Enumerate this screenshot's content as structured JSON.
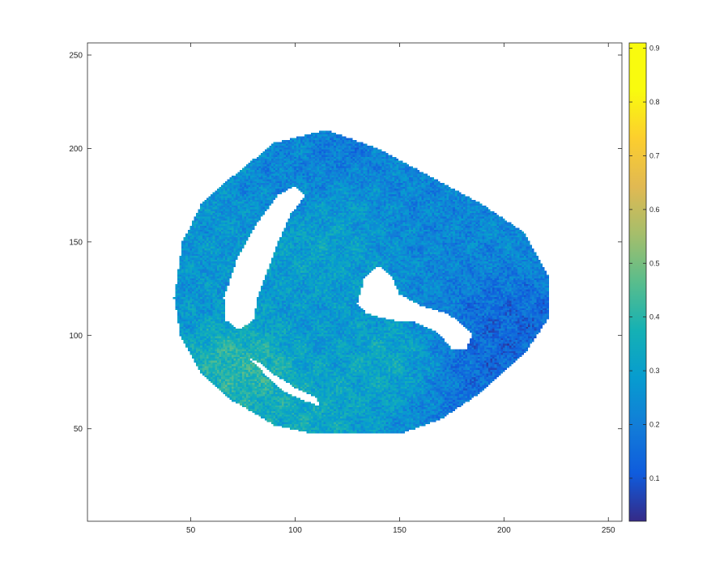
{
  "chart_data": {
    "type": "heatmap",
    "title": "",
    "xlabel": "",
    "ylabel": "",
    "xlim": [
      0.5,
      256.5
    ],
    "ylim": [
      0.5,
      256.5
    ],
    "x_ticks": [
      50,
      100,
      150,
      200,
      250
    ],
    "y_ticks": [
      50,
      100,
      150,
      200,
      250
    ],
    "x_tick_labels": [
      "50",
      "100",
      "150",
      "200",
      "250"
    ],
    "y_tick_labels": [
      "50",
      "100",
      "150",
      "200",
      "250"
    ],
    "grid": false,
    "colormap": "parula",
    "colorbar": {
      "placement": "right",
      "range": [
        0.02,
        0.91
      ],
      "ticks": [
        0.1,
        0.2,
        0.3,
        0.4,
        0.5,
        0.6,
        0.7,
        0.8,
        0.9
      ],
      "tick_labels": [
        "0.1",
        "0.2",
        "0.3",
        "0.4",
        "0.5",
        "0.6",
        "0.7",
        "0.8",
        "0.9"
      ]
    },
    "background_value": "NaN (white)",
    "region_outline": [
      [
        42,
        120
      ],
      [
        46,
        150
      ],
      [
        55,
        170
      ],
      [
        70,
        185
      ],
      [
        90,
        203
      ],
      [
        115,
        210
      ],
      [
        140,
        200
      ],
      [
        160,
        188
      ],
      [
        190,
        170
      ],
      [
        210,
        155
      ],
      [
        222,
        130
      ],
      [
        222,
        110
      ],
      [
        210,
        90
      ],
      [
        190,
        70
      ],
      [
        170,
        55
      ],
      [
        150,
        47
      ],
      [
        130,
        48
      ],
      [
        110,
        47
      ],
      [
        90,
        52
      ],
      [
        70,
        65
      ],
      [
        55,
        80
      ],
      [
        45,
        100
      ]
    ],
    "void_regions": [
      [
        [
          66,
          120
        ],
        [
          72,
          140
        ],
        [
          82,
          160
        ],
        [
          92,
          175
        ],
        [
          100,
          180
        ],
        [
          105,
          175
        ],
        [
          98,
          165
        ],
        [
          92,
          150
        ],
        [
          87,
          135
        ],
        [
          82,
          120
        ],
        [
          80,
          108
        ],
        [
          73,
          103
        ],
        [
          67,
          108
        ]
      ],
      [
        [
          130,
          117
        ],
        [
          133,
          130
        ],
        [
          140,
          137
        ],
        [
          146,
          132
        ],
        [
          150,
          122
        ],
        [
          160,
          116
        ],
        [
          172,
          112
        ],
        [
          178,
          108
        ],
        [
          185,
          101
        ],
        [
          182,
          92
        ],
        [
          175,
          93
        ],
        [
          168,
          102
        ],
        [
          158,
          107
        ],
        [
          148,
          108
        ],
        [
          140,
          110
        ],
        [
          134,
          112
        ]
      ],
      [
        [
          78,
          88
        ],
        [
          85,
          80
        ],
        [
          95,
          70
        ],
        [
          105,
          65
        ],
        [
          112,
          62
        ],
        [
          110,
          67
        ],
        [
          100,
          72
        ],
        [
          90,
          79
        ],
        [
          82,
          86
        ]
      ]
    ],
    "hotspots": [
      {
        "x": 205,
        "y": 95,
        "value": 0.08,
        "radius": 22
      },
      {
        "x": 185,
        "y": 75,
        "value": 0.14,
        "radius": 22
      },
      {
        "x": 125,
        "y": 200,
        "value": 0.15,
        "radius": 10
      },
      {
        "x": 100,
        "y": 180,
        "value": 0.18,
        "radius": 15
      },
      {
        "x": 115,
        "y": 150,
        "value": 0.36,
        "radius": 20
      },
      {
        "x": 75,
        "y": 85,
        "value": 0.5,
        "radius": 14
      },
      {
        "x": 150,
        "y": 85,
        "value": 0.4,
        "radius": 15
      },
      {
        "x": 100,
        "y": 60,
        "value": 0.38,
        "radius": 18
      },
      {
        "x": 160,
        "y": 165,
        "value": 0.2,
        "radius": 25
      },
      {
        "x": 95,
        "y": 120,
        "value": 0.28,
        "radius": 25
      }
    ]
  }
}
